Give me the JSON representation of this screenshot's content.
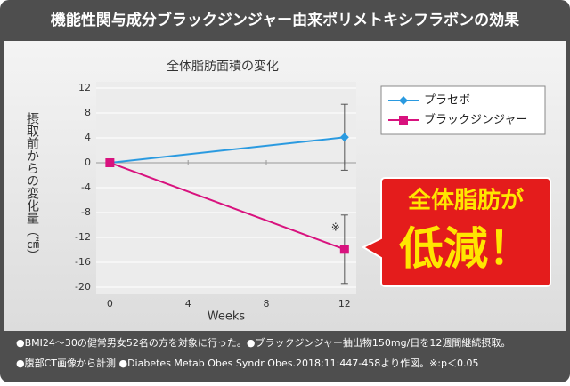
{
  "header": {
    "title": "機能性関与成分ブラックジンジャー由来ポリメトキシフラボンの効果"
  },
  "chart_data": {
    "type": "line",
    "title": "全体脂肪面積の変化",
    "x_label": "Weeks",
    "y_label": "摂取前からの変化量（㎠）",
    "x": [
      0,
      12
    ],
    "series": [
      {
        "name": "プラセボ",
        "color": "#2a9ae0",
        "marker": "diamond",
        "values": [
          0,
          4.1
        ],
        "errors": [
          null,
          5.3
        ]
      },
      {
        "name": "ブラックジンジャー",
        "color": "#d8127e",
        "marker": "square",
        "values": [
          0,
          -13.9
        ],
        "errors": [
          null,
          5.5
        ]
      }
    ],
    "xlim": [
      -0.7,
      12.6
    ],
    "xticks": [
      0,
      4,
      8,
      12
    ],
    "ylim": [
      -20,
      12
    ],
    "yticks": [
      12,
      8,
      4,
      0,
      -4,
      -8,
      -12,
      -16,
      -20
    ],
    "grid": true,
    "legend": "top-right",
    "annotation": "※"
  },
  "callout": {
    "line1": "全体脂肪が",
    "line2": "低減！"
  },
  "footnotes": [
    "●BMI24～30の健常男女52名の方を対象に行った。●ブラックジンジャー抽出物150mg/日を12週間継続摂取。",
    "●腹部CT画像から計測 ●Diabetes Metab Obes Syndr Obes.2018;11:447-458より作図。※:p＜0.05"
  ]
}
